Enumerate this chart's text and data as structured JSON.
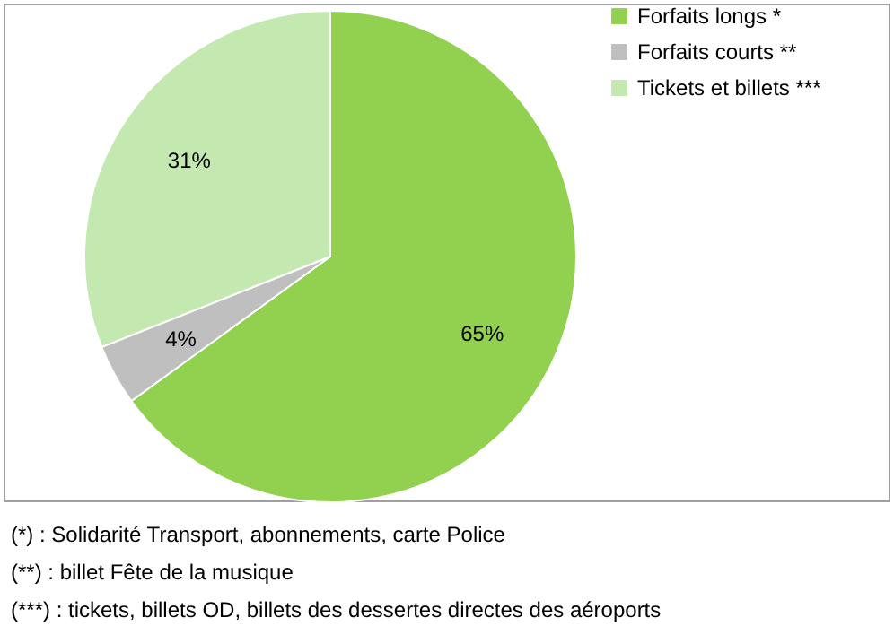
{
  "chart_data": {
    "type": "pie",
    "categories": [
      "Forfaits longs *",
      "Forfaits courts **",
      "Tickets et billets ***"
    ],
    "values": [
      65,
      4,
      31
    ],
    "colors": [
      "#92d050",
      "#bfbfbf",
      "#c4e9b0"
    ],
    "value_labels": [
      "65%",
      "4%",
      "31%"
    ],
    "legend": "right",
    "annotations": [
      "(*) : Solidarité Transport, abonnements, carte Police",
      "(**) : billet Fête de la musique",
      "(***) : tickets, billets OD, billets des dessertes directes des aéroports"
    ]
  }
}
